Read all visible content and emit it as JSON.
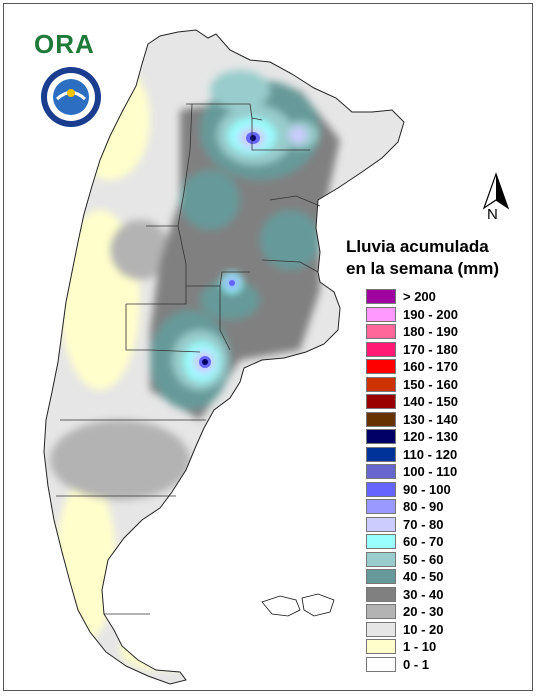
{
  "title": {
    "line1": "Lluvia acumulada",
    "line2": "en la semana (mm)"
  },
  "north_label": "N",
  "logos": {
    "ora": "ORA",
    "smn": "SERVICIO METEOROLOGICO NACIONAL ARGENTINA"
  },
  "legend": [
    {
      "label": "> 200",
      "color": "#a0009f"
    },
    {
      "label": "190 - 200",
      "color": "#ff99ff"
    },
    {
      "label": "180 - 190",
      "color": "#ff6699"
    },
    {
      "label": "170 - 180",
      "color": "#ff1a75"
    },
    {
      "label": "160 - 170",
      "color": "#ff0000"
    },
    {
      "label": "150 - 160",
      "color": "#cc3300"
    },
    {
      "label": "140 - 150",
      "color": "#990000"
    },
    {
      "label": "130 - 140",
      "color": "#663300"
    },
    {
      "label": "120 - 130",
      "color": "#000066"
    },
    {
      "label": "110 - 120",
      "color": "#003399"
    },
    {
      "label": "100 - 110",
      "color": "#6666cc"
    },
    {
      "label": "90 - 100",
      "color": "#6666ff"
    },
    {
      "label": "80 - 90",
      "color": "#9999ff"
    },
    {
      "label": "70 - 80",
      "color": "#ccccff"
    },
    {
      "label": "60 - 70",
      "color": "#99ffff"
    },
    {
      "label": "50 - 60",
      "color": "#99cccc"
    },
    {
      "label": "40 - 50",
      "color": "#669999"
    },
    {
      "label": "30 - 40",
      "color": "#808080"
    },
    {
      "label": "20 - 30",
      "color": "#b3b3b3"
    },
    {
      "label": "10 - 20",
      "color": "#e6e6e6"
    },
    {
      "label": "1 - 10",
      "color": "#ffffcc"
    },
    {
      "label": "0 - 1",
      "color": "#ffffff"
    }
  ]
}
